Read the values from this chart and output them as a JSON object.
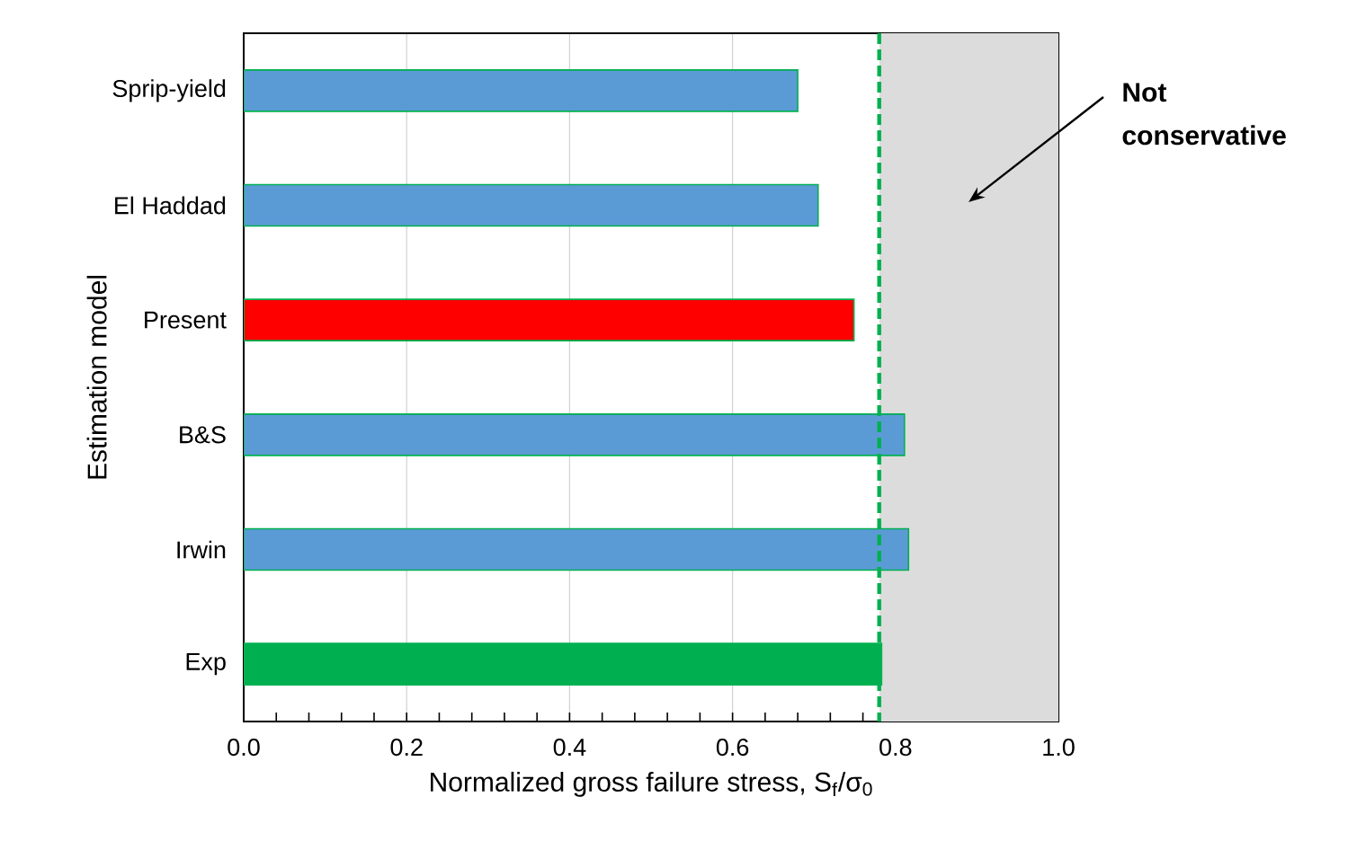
{
  "chart_data": {
    "type": "bar",
    "orientation": "horizontal",
    "xlabel": "Normalized gross failure stress, S$_{f}$/σ$_{0}$",
    "ylabel": "Estimation model",
    "categories": [
      "Sprip-yield",
      "El Haddad",
      "Present",
      "B&S",
      "Irwin",
      "Exp"
    ],
    "values": [
      0.68,
      0.705,
      0.749,
      0.811,
      0.816,
      0.783
    ],
    "colors": [
      "#5b9bd5",
      "#5b9bd5",
      "#ff0000",
      "#5b9bd5",
      "#5b9bd5",
      "#00b050"
    ],
    "xlim": [
      0,
      1.0
    ],
    "xticks": [
      {
        "value": 0,
        "label": "0.0"
      },
      {
        "value": 0.04,
        "label": null
      },
      {
        "value": 0.08,
        "label": null
      },
      {
        "value": 0.12,
        "label": null
      },
      {
        "value": 0.16,
        "label": null
      },
      {
        "value": 0.2,
        "label": "0.2"
      },
      {
        "value": 0.24,
        "label": null
      },
      {
        "value": 0.28,
        "label": null
      },
      {
        "value": 0.32,
        "label": null
      },
      {
        "value": 0.36,
        "label": null
      },
      {
        "value": 0.4,
        "label": "0.4"
      },
      {
        "value": 0.44,
        "label": null
      },
      {
        "value": 0.48,
        "label": null
      },
      {
        "value": 0.52,
        "label": null
      },
      {
        "value": 0.56,
        "label": null
      },
      {
        "value": 0.6,
        "label": "0.6"
      },
      {
        "value": 0.64,
        "label": null
      },
      {
        "value": 0.68,
        "label": null
      },
      {
        "value": 0.72,
        "label": null
      },
      {
        "value": 0.76,
        "label": null
      },
      {
        "value": 0.8,
        "label": "0.8"
      },
      {
        "value": 0.84,
        "label": null
      },
      {
        "value": 0.88,
        "label": null
      },
      {
        "value": 0.92,
        "label": null
      },
      {
        "value": 0.96,
        "label": null
      },
      {
        "value": 1.0,
        "label": "1.0"
      }
    ],
    "grid": "x",
    "ref_lines": [
      {
        "axis": "x",
        "value": 0.78,
        "color": "#00b050",
        "line_style": "dashed"
      }
    ],
    "bands": [
      {
        "axis": "x",
        "from": 0.78,
        "to": 1.0,
        "label": "Not conservative",
        "color": "#dcdcdc"
      }
    ]
  }
}
